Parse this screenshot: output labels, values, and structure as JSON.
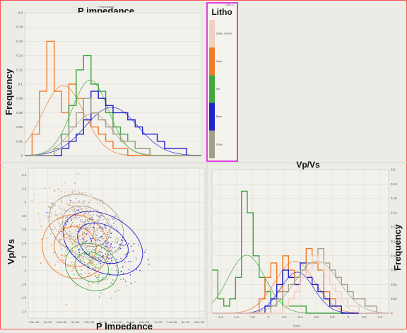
{
  "panels": {
    "p_impedance_title": "P impedance",
    "p_impedance_small": "P Impedance",
    "frequency_label": "Frequency",
    "litho_title": "Litho",
    "litho_small": "Litho_4",
    "vpvs_title": "Vp/Vs",
    "vpvs_small": "Vp/Vs",
    "cross_ylabel": "Vp/Vs",
    "cross_xlabel": "P Impedance",
    "right_frequency_label": "Frequency"
  },
  "colors": {
    "shale_normal": "#f3cfc0",
    "sand": "#f07a2a",
    "silt": "#3fa83f",
    "brine": "#2121d0",
    "shale": "#a39f88",
    "frame_red": "#ff5555",
    "litho_border": "#e040e0"
  },
  "legend": [
    {
      "label": "Shale_normal",
      "color": "#f3cfc0"
    },
    {
      "label": "Sand",
      "color": "#f07a2a"
    },
    {
      "label": "Silt",
      "color": "#3fa83f"
    },
    {
      "label": "Brine",
      "color": "#2121d0"
    },
    {
      "label": "Shale",
      "color": "#a39f88"
    }
  ],
  "chart_data": [
    {
      "type": "histogram",
      "title": "P impedance",
      "xlabel": "P Impedance",
      "ylabel": "Frequency",
      "ylim": [
        0,
        0.2
      ],
      "yticks": [
        "0.2",
        "0.18",
        "0.16",
        "0.14",
        "0.12",
        "0.1",
        "0.08",
        "0.06",
        "0.04",
        "0.02",
        "0"
      ],
      "series": [
        {
          "color": "#f07a2a",
          "values": [
            0,
            0.03,
            0.09,
            0.16,
            0.09,
            0.06,
            0.1,
            0.08,
            0.05,
            0.04,
            0.03,
            0.02,
            0.01,
            0.01,
            0,
            0,
            0,
            0,
            0,
            0,
            0,
            0,
            0,
            0
          ]
        },
        {
          "color": "#3fa83f",
          "values": [
            0,
            0,
            0,
            0,
            0.01,
            0.03,
            0.07,
            0.12,
            0.14,
            0.1,
            0.09,
            0.06,
            0.04,
            0.03,
            0.02,
            0.01,
            0.01,
            0,
            0,
            0,
            0,
            0,
            0,
            0
          ]
        },
        {
          "color": "#2121d0",
          "values": [
            0,
            0,
            0,
            0,
            0,
            0.01,
            0.02,
            0.03,
            0.05,
            0.09,
            0.08,
            0.07,
            0.06,
            0.06,
            0.05,
            0.04,
            0.03,
            0.03,
            0.02,
            0.01,
            0.01,
            0.01,
            0,
            0
          ]
        },
        {
          "color": "#a39f88",
          "values": [
            0,
            0,
            0,
            0,
            0.01,
            0.02,
            0.04,
            0.06,
            0.08,
            0.06,
            0.05,
            0.04,
            0.03,
            0.02,
            0.02,
            0.01,
            0.01,
            0,
            0,
            0,
            0,
            0,
            0,
            0
          ]
        }
      ]
    },
    {
      "type": "scatter",
      "xlabel": "P Impedance",
      "ylabel": "Vp/Vs",
      "xlim": [
        2300000.0,
        8700000.0
      ],
      "ylim": [
        1.3,
        3.5
      ],
      "xticks": [
        "2.5e+06",
        "3e+06",
        "3.5e+06",
        "4e+06",
        "4.5e+06",
        "5e+06",
        "5.5e+06",
        "6e+06",
        "6.5e+06",
        "7e+06",
        "7.5e+06",
        "8e+06",
        "8.5e+06"
      ],
      "yticks": [
        "3.4",
        "3.2",
        "3",
        "2.8",
        "2.6",
        "2.4",
        "2.2",
        "2",
        "1.8",
        "1.6",
        "1.4"
      ],
      "clusters": [
        {
          "color": "#a39f88",
          "cx": 4400000.0,
          "cy": 2.65,
          "sx": 650000.0,
          "sy": 0.26,
          "n": 420
        },
        {
          "color": "#f07a2a",
          "cx": 4000000.0,
          "cy": 2.35,
          "sx": 550000.0,
          "sy": 0.28,
          "n": 140
        },
        {
          "color": "#3fa83f",
          "cx": 4600000.0,
          "cy": 2.05,
          "sx": 450000.0,
          "sy": 0.2,
          "n": 90
        },
        {
          "color": "#2121d0",
          "cx": 5000000.0,
          "cy": 2.4,
          "sx": 700000.0,
          "sy": 0.25,
          "n": 170
        },
        {
          "color": "#f3cfc0",
          "cx": 4200000.0,
          "cy": 2.75,
          "sx": 500000.0,
          "sy": 0.22,
          "n": 70
        }
      ]
    },
    {
      "type": "histogram",
      "title": "Vp/Vs",
      "xlabel": "Vp/Vs",
      "ylabel": "Frequency",
      "ylim": [
        0,
        0.2
      ],
      "xticks": [
        "1.4",
        "1.6",
        "1.8",
        "2",
        "2.2",
        "2.4",
        "2.6",
        "2.8",
        "3",
        "3.2",
        "3.4"
      ],
      "yticks": [
        "0.2",
        "0.18",
        "0.16",
        "0.14",
        "0.12",
        "0.1",
        "0.08",
        "0.06",
        "0.04",
        "0.02",
        "0"
      ],
      "series": [
        {
          "color": "#3fa83f",
          "values": [
            0.06,
            0.02,
            0.01,
            0.02,
            0.05,
            0.17,
            0.14,
            0.08,
            0.05,
            0.03,
            0.02,
            0.02,
            0.01,
            0.01,
            0.01,
            0.01,
            0,
            0,
            0,
            0,
            0,
            0,
            0,
            0,
            0,
            0,
            0,
            0,
            0,
            0
          ]
        },
        {
          "color": "#f07a2a",
          "values": [
            0,
            0,
            0,
            0,
            0,
            0,
            0,
            0,
            0.02,
            0.05,
            0.07,
            0.03,
            0.08,
            0.06,
            0.04,
            0.05,
            0.09,
            0.07,
            0.06,
            0.03,
            0.02,
            0.01,
            0,
            0,
            0,
            0,
            0,
            0,
            0,
            0
          ]
        },
        {
          "color": "#2121d0",
          "values": [
            0,
            0,
            0,
            0,
            0,
            0,
            0,
            0,
            0,
            0.01,
            0.02,
            0.04,
            0.06,
            0.05,
            0.04,
            0.07,
            0.05,
            0.04,
            0.03,
            0.02,
            0.01,
            0.01,
            0,
            0,
            0,
            0,
            0,
            0,
            0,
            0
          ]
        },
        {
          "color": "#a39f88",
          "values": [
            0,
            0,
            0,
            0,
            0,
            0,
            0,
            0,
            0,
            0,
            0.01,
            0.02,
            0.03,
            0.04,
            0.05,
            0.06,
            0.07,
            0.08,
            0.09,
            0.07,
            0.06,
            0.05,
            0.04,
            0.03,
            0.02,
            0.02,
            0.01,
            0.01,
            0,
            0
          ]
        },
        {
          "color": "#f3cfc0",
          "values": [
            0,
            0,
            0,
            0,
            0,
            0,
            0,
            0,
            0,
            0,
            0,
            0,
            0.01,
            0.02,
            0.03,
            0.05,
            0.06,
            0.08,
            0.07,
            0.06,
            0.04,
            0.03,
            0.02,
            0.01,
            0.01,
            0,
            0,
            0,
            0,
            0
          ]
        }
      ]
    }
  ]
}
